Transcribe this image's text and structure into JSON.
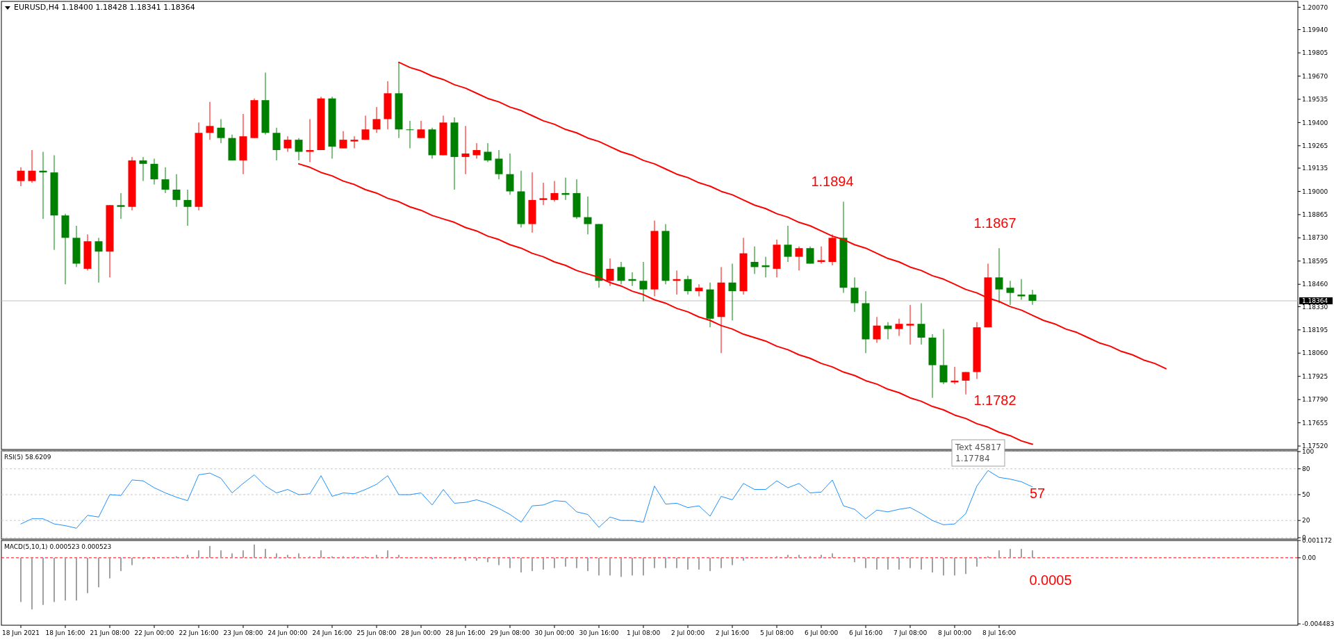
{
  "chart_data": [
    {
      "type": "candlestick",
      "title": "EURUSD,H4  1.18400 1.18428 1.18341 1.18364",
      "categories": [
        null,
        null,
        null,
        null,
        null,
        null,
        null,
        null,
        null,
        null,
        null,
        null,
        null,
        null,
        null,
        null,
        null,
        null,
        null,
        null,
        null,
        null,
        null,
        null,
        null,
        null,
        null,
        null,
        null,
        null,
        null,
        null,
        null,
        null,
        null,
        null,
        null,
        null,
        null,
        null,
        null,
        null,
        null,
        null,
        null,
        null,
        null,
        null,
        null,
        null,
        null,
        null,
        null,
        null,
        null,
        null,
        null,
        null,
        null,
        null,
        null,
        null,
        null,
        null,
        null,
        null,
        null,
        null,
        null,
        null,
        null,
        null,
        null,
        null,
        null,
        null,
        null,
        null,
        null,
        null,
        null,
        null,
        null,
        null,
        null,
        null,
        null,
        null,
        null,
        null,
        null,
        null,
        null,
        null,
        null,
        null,
        null,
        null,
        null,
        null,
        null,
        null,
        null,
        null,
        null,
        null,
        null,
        null,
        null,
        null,
        null,
        null,
        null,
        null
      ],
      "ohlc": [
        [
          1.1906,
          1.1914,
          1.1903,
          1.1912
        ],
        [
          1.1906,
          1.1924,
          1.1905,
          1.1912
        ],
        [
          1.1912,
          1.1923,
          1.1884,
          1.1911
        ],
        [
          1.1911,
          1.1921,
          1.1866,
          1.1886
        ],
        [
          1.1886,
          1.1887,
          1.1846,
          1.1873
        ],
        [
          1.1873,
          1.188,
          1.1856,
          1.1858
        ],
        [
          1.1855,
          1.1875,
          1.1854,
          1.1871
        ],
        [
          1.1871,
          1.1873,
          1.1847,
          1.1865
        ],
        [
          1.1865,
          1.1892,
          1.185,
          1.1892
        ],
        [
          1.1892,
          1.1899,
          1.1884,
          1.1891
        ],
        [
          1.1891,
          1.192,
          1.1889,
          1.1918
        ],
        [
          1.1918,
          1.192,
          1.1906,
          1.1916
        ],
        [
          1.1916,
          1.1919,
          1.1904,
          1.1907
        ],
        [
          1.1907,
          1.1914,
          1.1899,
          1.1901
        ],
        [
          1.1901,
          1.191,
          1.1891,
          1.1895
        ],
        [
          1.1895,
          1.1901,
          1.188,
          1.1891
        ],
        [
          1.1891,
          1.194,
          1.1889,
          1.1934
        ],
        [
          1.1934,
          1.1952,
          1.193,
          1.1938
        ],
        [
          1.1937,
          1.1942,
          1.1928,
          1.1931
        ],
        [
          1.1931,
          1.1933,
          1.1918,
          1.1918
        ],
        [
          1.1918,
          1.1945,
          1.191,
          1.1932
        ],
        [
          1.1931,
          1.1954,
          1.1931,
          1.1953
        ],
        [
          1.1953,
          1.1969,
          1.1933,
          1.1934
        ],
        [
          1.1934,
          1.1937,
          1.1918,
          1.1924
        ],
        [
          1.1925,
          1.1932,
          1.1923,
          1.193
        ],
        [
          1.193,
          1.1931,
          1.1918,
          1.1923
        ],
        [
          1.1923,
          1.1942,
          1.1917,
          1.1924
        ],
        [
          1.1924,
          1.1955,
          1.1924,
          1.1954
        ],
        [
          1.1954,
          1.1955,
          1.1919,
          1.1926
        ],
        [
          1.1925,
          1.1935,
          1.1925,
          1.193
        ],
        [
          1.1929,
          1.1932,
          1.1925,
          1.193
        ],
        [
          1.193,
          1.1944,
          1.193,
          1.1936
        ],
        [
          1.1936,
          1.1949,
          1.1934,
          1.1942
        ],
        [
          1.1942,
          1.1964,
          1.1936,
          1.1957
        ],
        [
          1.1957,
          1.1975,
          1.1931,
          1.1936
        ],
        [
          1.1936,
          1.1941,
          1.1925,
          1.1936
        ],
        [
          1.1931,
          1.1941,
          1.1931,
          1.1936
        ],
        [
          1.1936,
          1.1937,
          1.1919,
          1.1921
        ],
        [
          1.1921,
          1.1944,
          1.1921,
          1.194
        ],
        [
          1.194,
          1.1943,
          1.1901,
          1.192
        ],
        [
          1.192,
          1.1938,
          1.191,
          1.1922
        ],
        [
          1.1921,
          1.1928,
          1.1919,
          1.1924
        ],
        [
          1.1923,
          1.1928,
          1.1917,
          1.1918
        ],
        [
          1.1919,
          1.1924,
          1.1907,
          1.191
        ],
        [
          1.191,
          1.1922,
          1.1898,
          1.19
        ],
        [
          1.19,
          1.1912,
          1.1879,
          1.1881
        ],
        [
          1.1881,
          1.1911,
          1.1876,
          1.1895
        ],
        [
          1.1895,
          1.1905,
          1.1892,
          1.1896
        ],
        [
          1.1895,
          1.1906,
          1.1894,
          1.1899
        ],
        [
          1.1899,
          1.1908,
          1.1895,
          1.1898
        ],
        [
          1.1899,
          1.1907,
          1.1884,
          1.1885
        ],
        [
          1.1885,
          1.1897,
          1.1875,
          1.1881
        ],
        [
          1.1881,
          1.1881,
          1.1844,
          1.1848
        ],
        [
          1.1848,
          1.1861,
          1.1845,
          1.1855
        ],
        [
          1.1856,
          1.1859,
          1.1846,
          1.1848
        ],
        [
          1.1849,
          1.1853,
          1.1845,
          1.1848
        ],
        [
          1.1848,
          1.1859,
          1.1836,
          1.1843
        ],
        [
          1.1843,
          1.1883,
          1.1839,
          1.1877
        ],
        [
          1.1877,
          1.1881,
          1.1846,
          1.1848
        ],
        [
          1.1848,
          1.1854,
          1.184,
          1.1849
        ],
        [
          1.1849,
          1.1851,
          1.184,
          1.1842
        ],
        [
          1.1842,
          1.1846,
          1.1839,
          1.1844
        ],
        [
          1.1843,
          1.1847,
          1.1821,
          1.1826
        ],
        [
          1.1827,
          1.1856,
          1.1806,
          1.1847
        ],
        [
          1.1847,
          1.1858,
          1.1825,
          1.1842
        ],
        [
          1.1842,
          1.1873,
          1.184,
          1.1864
        ],
        [
          1.1859,
          1.1868,
          1.1852,
          1.1856
        ],
        [
          1.1857,
          1.1862,
          1.185,
          1.1856
        ],
        [
          1.1855,
          1.1872,
          1.185,
          1.1869
        ],
        [
          1.1869,
          1.188,
          1.1859,
          1.1862
        ],
        [
          1.1862,
          1.1868,
          1.1854,
          1.1867
        ],
        [
          1.1867,
          1.1868,
          1.1858,
          1.1858
        ],
        [
          1.1859,
          1.1868,
          1.1858,
          1.186
        ],
        [
          1.1859,
          1.1875,
          1.1857,
          1.1873
        ],
        [
          1.1873,
          1.1894,
          1.1841,
          1.1844
        ],
        [
          1.1844,
          1.185,
          1.183,
          1.1835
        ],
        [
          1.1835,
          1.1842,
          1.1806,
          1.1814
        ],
        [
          1.1814,
          1.1827,
          1.1812,
          1.1822
        ],
        [
          1.1822,
          1.1824,
          1.1814,
          1.182
        ],
        [
          1.182,
          1.1826,
          1.1816,
          1.1823
        ],
        [
          1.1822,
          1.1834,
          1.1811,
          1.1823
        ],
        [
          1.1823,
          1.1835,
          1.1811,
          1.1815
        ],
        [
          1.1815,
          1.1817,
          1.178,
          1.1799
        ],
        [
          1.1799,
          1.182,
          1.1788,
          1.1789
        ],
        [
          1.1789,
          1.1798,
          1.1788,
          1.179
        ],
        [
          1.179,
          1.1795,
          1.1782,
          1.1795
        ],
        [
          1.1795,
          1.1824,
          1.1791,
          1.1821
        ],
        [
          1.1821,
          1.1858,
          1.1821,
          1.185
        ],
        [
          1.185,
          1.1867,
          1.1835,
          1.1843
        ],
        [
          1.1844,
          1.1848,
          1.1834,
          1.1841
        ],
        [
          1.184,
          1.1849,
          1.1837,
          1.1839
        ],
        [
          1.184,
          1.18428,
          1.18341,
          1.18364
        ],
        null,
        null,
        null,
        null,
        null,
        null,
        null,
        null,
        null,
        null,
        null,
        null,
        null,
        null,
        null,
        null,
        null,
        null,
        null,
        null,
        null,
        null
      ],
      "colors": [
        "#ff0000",
        "#ff0000",
        "#008000",
        "#008000",
        "#008000",
        "#008000",
        "#ff0000",
        "#008000",
        "#ff0000",
        "#008000",
        "#ff0000",
        "#008000",
        "#008000",
        "#008000",
        "#008000",
        "#008000",
        "#ff0000",
        "#ff0000",
        "#008000",
        "#008000",
        "#ff0000",
        "#ff0000",
        "#008000",
        "#008000",
        "#ff0000",
        "#008000",
        "#ff0000",
        "#ff0000",
        "#008000",
        "#ff0000",
        "#ff0000",
        "#ff0000",
        "#ff0000",
        "#ff0000",
        "#008000",
        "#008000",
        "#ff0000",
        "#008000",
        "#ff0000",
        "#008000",
        "#ff0000",
        "#ff0000",
        "#008000",
        "#008000",
        "#008000",
        "#008000",
        "#ff0000",
        "#ff0000",
        "#ff0000",
        "#008000",
        "#008000",
        "#008000",
        "#008000",
        "#ff0000",
        "#008000",
        "#008000",
        "#008000",
        "#ff0000",
        "#008000",
        "#ff0000",
        "#008000",
        "#ff0000",
        "#008000",
        "#ff0000",
        "#008000",
        "#ff0000",
        "#008000",
        "#008000",
        "#ff0000",
        "#008000",
        "#ff0000",
        "#008000",
        "#ff0000",
        "#ff0000",
        "#008000",
        "#008000",
        "#008000",
        "#ff0000",
        "#008000",
        "#ff0000",
        "#ff0000",
        "#008000",
        "#008000",
        "#008000",
        "#ff0000",
        "#ff0000",
        "#ff0000",
        "#ff0000",
        "#008000",
        "#008000",
        "#008000",
        "#008000",
        null,
        null,
        null,
        null,
        null,
        null,
        null,
        null,
        null,
        null,
        null,
        null,
        null,
        null,
        null,
        null,
        null,
        null,
        null,
        null,
        null,
        null
      ],
      "series": [
        {
          "type": "line",
          "color": "#ff0000",
          "values": [
            null,
            null,
            null,
            null,
            null,
            null,
            null,
            null,
            null,
            null,
            null,
            null,
            null,
            null,
            null,
            null,
            null,
            null,
            null,
            null,
            null,
            null,
            null,
            null,
            null,
            null,
            null,
            null,
            null,
            null,
            null,
            null,
            null,
            null,
            1.1975,
            1.1972,
            1.197,
            1.1967,
            1.1965,
            1.1962,
            1.196,
            1.1957,
            1.1954,
            1.1952,
            1.1949,
            1.1947,
            1.1944,
            1.1941,
            1.1939,
            1.1936,
            1.1934,
            1.1931,
            1.1929,
            1.1926,
            1.1923,
            1.1921,
            1.1918,
            1.1916,
            1.1913,
            1.191,
            1.1908,
            1.1905,
            1.1903,
            1.19,
            1.1898,
            1.1895,
            1.1892,
            1.189,
            1.1887,
            1.1885,
            1.1882,
            1.188,
            1.1877,
            1.1874,
            1.1872,
            1.1869,
            1.1867,
            1.1864,
            1.1861,
            1.1859,
            1.1856,
            1.1854,
            1.1851,
            1.1849,
            1.1846,
            1.1843,
            1.1841,
            1.1838,
            1.1836,
            1.1833,
            1.1831,
            1.1828,
            1.1825,
            1.1823,
            1.182,
            1.1818,
            1.1815,
            1.1812,
            1.181,
            1.1807,
            1.1805,
            1.1802,
            1.18,
            1.1797,
            null,
            null,
            null,
            null,
            null,
            null,
            null,
            null,
            null,
            null
          ]
        },
        {
          "type": "line",
          "color": "#ff0000",
          "values": [
            null,
            null,
            null,
            null,
            null,
            null,
            null,
            null,
            null,
            null,
            null,
            null,
            null,
            null,
            null,
            null,
            null,
            null,
            null,
            null,
            null,
            null,
            null,
            null,
            null,
            1.1916,
            1.1914,
            1.1911,
            1.1909,
            1.1906,
            1.1904,
            1.1901,
            1.1899,
            1.1896,
            1.1894,
            1.1891,
            1.1889,
            1.1886,
            1.1884,
            1.1882,
            1.1879,
            1.1877,
            1.1874,
            1.1872,
            1.1869,
            1.1867,
            1.1864,
            1.1862,
            1.1859,
            1.1857,
            1.1854,
            1.1852,
            1.185,
            1.1847,
            1.1845,
            1.1842,
            1.184,
            1.1837,
            1.1835,
            1.1832,
            1.183,
            1.1827,
            1.1825,
            1.1822,
            1.182,
            1.1817,
            1.1815,
            1.1813,
            1.181,
            1.1808,
            1.1805,
            1.1803,
            1.18,
            1.1798,
            1.1795,
            1.1793,
            1.179,
            1.1788,
            1.1785,
            1.1783,
            1.178,
            1.1778,
            1.1775,
            1.1773,
            1.177,
            1.1768,
            1.1765,
            1.1763,
            1.176,
            1.1758,
            1.1755,
            1.1753,
            null,
            null,
            null,
            null,
            null,
            null,
            null,
            null,
            null,
            null,
            null,
            null,
            null,
            null,
            null,
            null,
            null,
            null,
            null,
            null,
            null,
            null
          ]
        }
      ],
      "ylim": [
        1.175,
        1.201
      ],
      "yticks": [
        {
          "value": 1.2007,
          "label": "1.20070"
        },
        {
          "value": 1.1994,
          "label": "1.19940"
        },
        {
          "value": 1.19805,
          "label": "1.19805"
        },
        {
          "value": 1.1967,
          "label": "1.19670"
        },
        {
          "value": 1.19535,
          "label": "1.19535"
        },
        {
          "value": 1.194,
          "label": "1.19400"
        },
        {
          "value": 1.19265,
          "label": "1.19265"
        },
        {
          "value": 1.19135,
          "label": "1.19135"
        },
        {
          "value": 1.19,
          "label": "1.19000"
        },
        {
          "value": 1.18865,
          "label": "1.18865"
        },
        {
          "value": 1.1873,
          "label": "1.18730"
        },
        {
          "value": 1.18595,
          "label": "1.18595"
        },
        {
          "value": 1.1846,
          "label": "1.18460"
        },
        {
          "value": 1.1833,
          "label": "1.18330"
        },
        {
          "value": 1.18195,
          "label": "1.18195"
        },
        {
          "value": 1.1806,
          "label": "1.18060"
        },
        {
          "value": 1.17925,
          "label": "1.17925"
        },
        {
          "value": 1.1779,
          "label": "1.17790"
        },
        {
          "value": 1.17655,
          "label": "1.17655"
        },
        {
          "value": 1.1752,
          "label": "1.17520"
        }
      ],
      "ref_lines": [
        {
          "axis": "y",
          "value": 1.18364,
          "label": "1.18364",
          "color": "#c0c0c0"
        }
      ],
      "annotations": [
        "1.1894",
        "1.1867",
        "1.1782",
        "Text 45817\n1.17784"
      ],
      "tick_labels": "y"
    },
    {
      "type": "line",
      "title": "RSI(5) 58.6209",
      "categories": [
        null,
        null,
        null,
        null,
        null,
        null,
        null,
        null,
        null,
        null,
        null,
        null,
        null,
        null,
        null,
        null,
        null,
        null,
        null,
        null,
        null,
        null,
        null,
        null,
        null,
        null,
        null,
        null,
        null,
        null,
        null,
        null,
        null,
        null,
        null,
        null,
        null,
        null,
        null,
        null,
        null,
        null,
        null,
        null,
        null,
        null,
        null,
        null,
        null,
        null,
        null,
        null,
        null,
        null,
        null,
        null,
        null,
        null,
        null,
        null,
        null,
        null,
        null,
        null,
        null,
        null,
        null,
        null,
        null,
        null,
        null,
        null,
        null,
        null,
        null,
        null,
        null,
        null,
        null,
        null,
        null,
        null,
        null,
        null,
        null,
        null,
        null,
        null,
        null,
        null,
        null,
        null,
        null,
        null,
        null,
        null,
        null,
        null,
        null,
        null,
        null,
        null,
        null,
        null,
        null,
        null,
        null,
        null,
        null,
        null,
        null,
        null,
        null,
        null
      ],
      "series": [
        {
          "color": "#1e90ff",
          "values": [
            16,
            22,
            22,
            16,
            14,
            11,
            26,
            24,
            50,
            49,
            67,
            66,
            58,
            52,
            47,
            43,
            73,
            75,
            69,
            52,
            63,
            73,
            60,
            52,
            56,
            50,
            51,
            72,
            48,
            52,
            51,
            56,
            62,
            72,
            50,
            50,
            52,
            38,
            56,
            40,
            41,
            44,
            40,
            34,
            27,
            18,
            37,
            38,
            43,
            42,
            30,
            27,
            12,
            24,
            20,
            20,
            18,
            60,
            39,
            40,
            35,
            37,
            25,
            48,
            44,
            63,
            56,
            56,
            66,
            58,
            63,
            52,
            53,
            67,
            37,
            33,
            22,
            32,
            30,
            33,
            35,
            28,
            20,
            15,
            16,
            28,
            60,
            78,
            70,
            68,
            65,
            59,
            null,
            null,
            null,
            null,
            null,
            null,
            null,
            null,
            null,
            null,
            null,
            null,
            null,
            null,
            null,
            null,
            null,
            null,
            null,
            null,
            null,
            null
          ]
        }
      ],
      "ylim": [
        0,
        100
      ],
      "yticks": [
        100,
        80,
        50,
        20,
        0
      ],
      "grid": "y",
      "annotations": [
        "57"
      ],
      "tick_labels": "y"
    },
    {
      "type": "bar",
      "title": "MACD(5,10,1) 0.000523 0.000523",
      "categories": [
        "18 Jun 2021",
        null,
        null,
        null,
        "18 Jun 16:00",
        null,
        null,
        null,
        "21 Jun 08:00",
        null,
        null,
        null,
        "22 Jun 00:00",
        null,
        null,
        null,
        "22 Jun 16:00",
        null,
        null,
        null,
        "23 Jun 08:00",
        null,
        null,
        null,
        "24 Jun 00:00",
        null,
        null,
        null,
        "24 Jun 16:00",
        null,
        null,
        null,
        "25 Jun 08:00",
        null,
        null,
        null,
        "28 Jun 00:00",
        null,
        null,
        null,
        "28 Jun 16:00",
        null,
        null,
        null,
        "29 Jun 08:00",
        null,
        null,
        null,
        "30 Jun 00:00",
        null,
        null,
        null,
        "30 Jun 16:00",
        null,
        null,
        null,
        "1 Jul 08:00",
        null,
        null,
        null,
        "2 Jul 00:00",
        null,
        null,
        null,
        "2 Jul 16:00",
        null,
        null,
        null,
        "5 Jul 08:00",
        null,
        null,
        null,
        "6 Jul 00:00",
        null,
        null,
        null,
        "6 Jul 16:00",
        null,
        null,
        null,
        "7 Jul 08:00",
        null,
        null,
        null,
        "8 Jul 00:00",
        null,
        null,
        null,
        "8 Jul 16:00",
        null,
        null,
        null,
        null,
        null,
        null,
        null,
        null,
        null,
        null,
        null,
        null,
        null,
        null,
        null,
        null,
        null,
        null,
        null,
        null,
        null,
        null,
        null,
        null,
        null
      ],
      "values": [
        -0.003,
        -0.0035,
        -0.0032,
        -0.003,
        -0.0029,
        -0.0029,
        -0.0024,
        -0.002,
        -0.0014,
        -0.0009,
        -0.0005,
        -0.0001,
        -0.0001,
        0.0,
        0.0001,
        0.0002,
        0.0005,
        0.0008,
        0.0005,
        0.0003,
        0.0005,
        0.0009,
        0.0006,
        0.0003,
        0.0002,
        0.0003,
        0.0001,
        0.0005,
        0.0001,
        0.0001,
        0.0001,
        0.0001,
        0.0002,
        0.0005,
        0.0002,
        0.0,
        0.0,
        -0.0001,
        0.0,
        -0.0001,
        -0.0002,
        -0.0002,
        -0.0003,
        -0.0005,
        -0.0007,
        -0.001,
        -0.0009,
        -0.0008,
        -0.0007,
        -0.0006,
        -0.0007,
        -0.0009,
        -0.0012,
        -0.0012,
        -0.0013,
        -0.0012,
        -0.0012,
        -0.0007,
        -0.0007,
        -0.0007,
        -0.0008,
        -0.0008,
        -0.0009,
        -0.0007,
        -0.0005,
        -0.0002,
        0.0,
        0.0,
        0.0001,
        0.0002,
        0.0002,
        0.0001,
        0.0002,
        0.0003,
        0.0,
        -0.0003,
        -0.0007,
        -0.0008,
        -0.0008,
        -0.0008,
        -0.0007,
        -0.0008,
        -0.001,
        -0.0012,
        -0.0012,
        -0.0011,
        -0.0006,
        0.0001,
        0.0005,
        0.0006,
        0.0006,
        0.0005,
        null,
        null,
        null,
        null,
        null,
        null,
        null,
        null,
        null,
        null,
        null,
        null,
        null,
        null,
        null,
        null,
        null,
        null,
        null,
        null,
        null,
        null
      ],
      "color": "#a0a0a0",
      "ylim": [
        -0.004483,
        0.001172
      ],
      "yticks": [
        0.001172,
        {
          "value": 0,
          "label": "0.00"
        },
        -0.004483
      ],
      "ref_lines": [
        {
          "axis": "y",
          "value": 0,
          "color": "#ff0000",
          "line_style": "dashed"
        }
      ],
      "annotations": [
        "0.0005"
      ]
    }
  ]
}
